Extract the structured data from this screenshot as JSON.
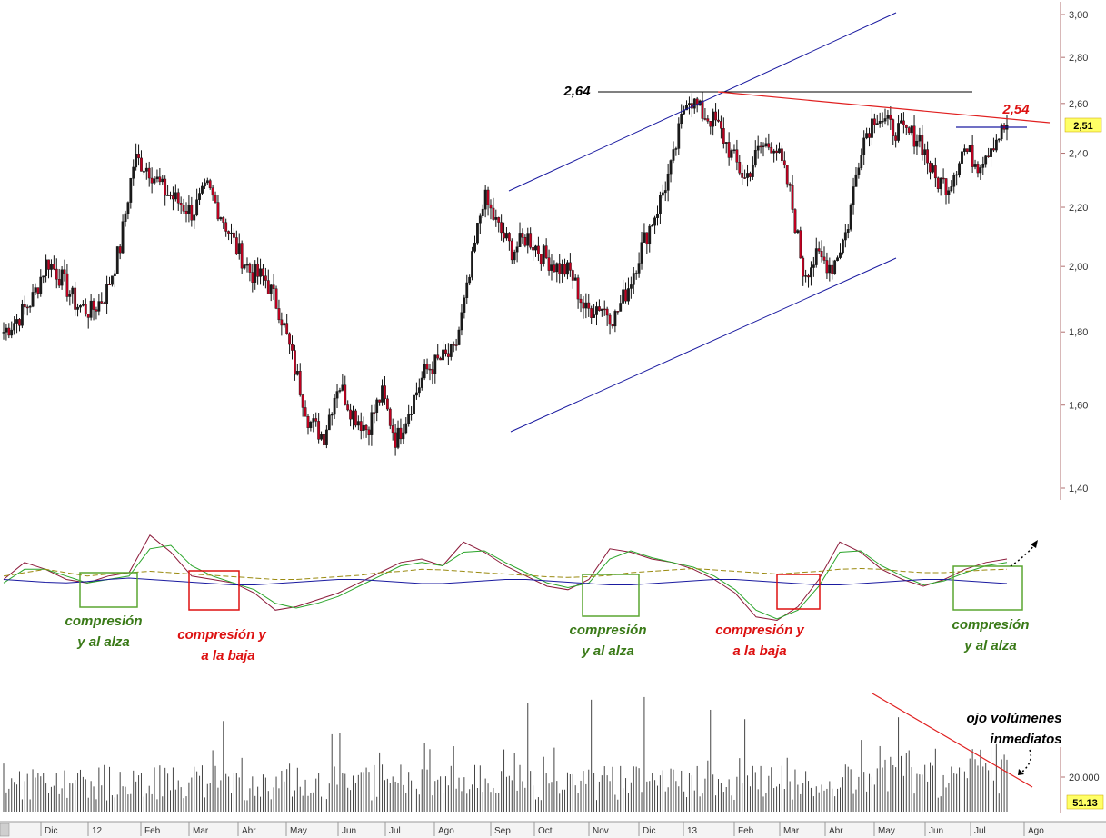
{
  "chart_data": [
    {
      "type": "candlestick",
      "panel": "price",
      "y_ticks": [
        "3,00",
        "2,80",
        "2,60",
        "2,40",
        "2,20",
        "2,00",
        "1,80",
        "1,60",
        "1,40"
      ],
      "y_tick_values": [
        3.0,
        2.8,
        2.6,
        2.4,
        2.2,
        2.0,
        1.8,
        1.6,
        1.4
      ],
      "ylim": [
        1.36,
        3.06
      ],
      "scale": "log",
      "x_months": [
        "Dic",
        "12",
        "Feb",
        "Mar",
        "Abr",
        "May",
        "Jun",
        "Jul",
        "Ago",
        "Sep",
        "Oct",
        "Nov",
        "Dic",
        "13",
        "Feb",
        "Mar",
        "Abr",
        "May",
        "Jun",
        "Jul",
        "Ago"
      ],
      "last_price_label": "2,51",
      "last_price": 2.51,
      "annotations": {
        "peak_label": "2,64",
        "peak_value": 2.64,
        "resistance_label": "2,54",
        "resistance_value": 2.54
      },
      "close_series": [
        1.8,
        1.84,
        1.9,
        2.02,
        1.96,
        1.88,
        1.86,
        1.91,
        2.06,
        2.38,
        2.34,
        2.26,
        2.22,
        2.18,
        2.27,
        2.17,
        2.06,
        1.98,
        1.96,
        1.86,
        1.7,
        1.56,
        1.52,
        1.66,
        1.58,
        1.54,
        1.63,
        1.51,
        1.6,
        1.69,
        1.72,
        1.74,
        1.95,
        2.24,
        2.13,
        2.05,
        2.1,
        2.04,
        2.0,
        1.98,
        1.86,
        1.88,
        1.84,
        1.94,
        2.08,
        2.2,
        2.36,
        2.64,
        2.56,
        2.52,
        2.4,
        2.3,
        2.42,
        2.44,
        2.27,
        1.98,
        2.03,
        2.0,
        2.12,
        2.44,
        2.56,
        2.5,
        2.48,
        2.46,
        2.3,
        2.28,
        2.42,
        2.36,
        2.44,
        2.51
      ],
      "channel": {
        "upper": [
          [
            2.28,
            "Sep"
          ],
          [
            3.0,
            "Jun"
          ]
        ],
        "lower": [
          [
            1.52,
            "Sep"
          ],
          [
            2.03,
            "Jun"
          ]
        ]
      },
      "colors": {
        "up": "#1a1a1a",
        "down": "#c00020",
        "channel": "#1a1aa0",
        "resistance": "#e02020",
        "peakline": "#000000",
        "tag_bg": "#ffff66"
      }
    },
    {
      "type": "line",
      "panel": "oscillator",
      "series": [
        {
          "color": "#8b1a3a",
          "values": [
            0.3,
            0.55,
            0.45,
            0.3,
            0.25,
            0.35,
            0.4,
            0.95,
            0.7,
            0.35,
            0.3,
            0.25,
            0.1,
            -0.15,
            -0.1,
            0.0,
            0.1,
            0.25,
            0.4,
            0.55,
            0.6,
            0.5,
            0.85,
            0.7,
            0.5,
            0.35,
            0.2,
            0.15,
            0.3,
            0.75,
            0.7,
            0.6,
            0.55,
            0.45,
            0.3,
            0.1,
            -0.25,
            -0.3,
            -0.1,
            0.3,
            0.85,
            0.7,
            0.45,
            0.3,
            0.2,
            0.3,
            0.45,
            0.55,
            0.6
          ]
        },
        {
          "color": "#2aa52a",
          "values": [
            0.25,
            0.45,
            0.45,
            0.35,
            0.25,
            0.3,
            0.35,
            0.75,
            0.8,
            0.5,
            0.35,
            0.25,
            0.15,
            -0.05,
            -0.12,
            -0.05,
            0.05,
            0.2,
            0.35,
            0.5,
            0.55,
            0.5,
            0.7,
            0.72,
            0.55,
            0.4,
            0.25,
            0.18,
            0.25,
            0.6,
            0.72,
            0.62,
            0.55,
            0.48,
            0.35,
            0.15,
            -0.15,
            -0.28,
            -0.15,
            0.2,
            0.7,
            0.72,
            0.5,
            0.35,
            0.22,
            0.28,
            0.4,
            0.5,
            0.55
          ]
        },
        {
          "color": "#9a8a10",
          "values": [
            0.35,
            0.4,
            0.45,
            0.4,
            0.35,
            0.38,
            0.4,
            0.42,
            0.4,
            0.38,
            0.36,
            0.34,
            0.32,
            0.3,
            0.3,
            0.32,
            0.34,
            0.36,
            0.4,
            0.42,
            0.45,
            0.44,
            0.42,
            0.4,
            0.38,
            0.36,
            0.34,
            0.33,
            0.34,
            0.36,
            0.4,
            0.42,
            0.44,
            0.46,
            0.44,
            0.42,
            0.4,
            0.38,
            0.4,
            0.42,
            0.45,
            0.46,
            0.45,
            0.42,
            0.4,
            0.4,
            0.42,
            0.44,
            0.45
          ]
        },
        {
          "color": "#1a1aa0",
          "values": [
            0.3,
            0.28,
            0.26,
            0.25,
            0.27,
            0.3,
            0.32,
            0.3,
            0.28,
            0.26,
            0.24,
            0.22,
            0.22,
            0.24,
            0.26,
            0.28,
            0.3,
            0.3,
            0.28,
            0.26,
            0.24,
            0.24,
            0.26,
            0.28,
            0.3,
            0.3,
            0.28,
            0.26,
            0.24,
            0.22,
            0.22,
            0.24,
            0.26,
            0.28,
            0.3,
            0.3,
            0.28,
            0.26,
            0.24,
            0.22,
            0.22,
            0.24,
            0.26,
            0.28,
            0.3,
            0.3,
            0.28,
            0.26,
            0.24
          ]
        }
      ],
      "annotations": [
        {
          "line1": "compresión",
          "line2": "y al alza",
          "color": "#3a7a18",
          "box": "green"
        },
        {
          "line1": "compresión y",
          "line2": "a la baja",
          "color": "#dd1111",
          "box": "red"
        },
        {
          "line1": "compresión",
          "line2": "y al alza",
          "color": "#3a7a18",
          "box": "green"
        },
        {
          "line1": "compresión y",
          "line2": "a la baja",
          "color": "#dd1111",
          "box": "red"
        },
        {
          "line1": "compresión",
          "line2": "y al alza",
          "color": "#3a7a18",
          "box": "green"
        }
      ]
    },
    {
      "type": "bar",
      "panel": "volume",
      "y_ticks": [
        "20.000"
      ],
      "y_tick_values": [
        20000
      ],
      "last_volume_label": "51.13",
      "annotation": {
        "line1": "ojo volúmenes",
        "line2": "inmediatos"
      },
      "trendline_color": "#e02020",
      "bar_color": "#444444"
    }
  ]
}
